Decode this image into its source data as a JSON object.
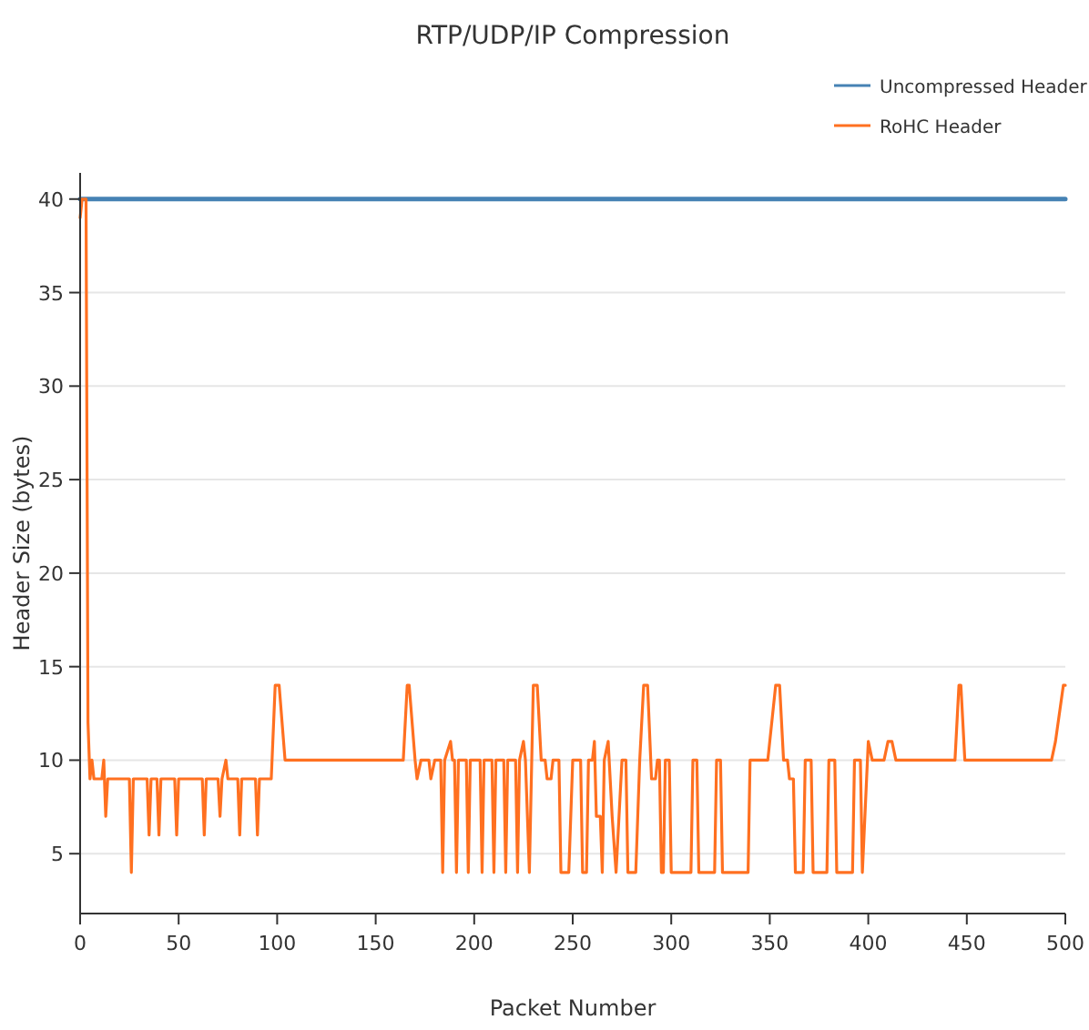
{
  "chart_data": {
    "type": "line",
    "title": "RTP/UDP/IP Compression",
    "xlabel": "Packet Number",
    "ylabel": "Header Size (bytes)",
    "xlim": [
      0,
      500
    ],
    "xticks": [
      0,
      50,
      100,
      150,
      200,
      250,
      300,
      350,
      400,
      450,
      500
    ],
    "ylim": [
      1.8,
      41.4
    ],
    "yticks": [
      5,
      10,
      15,
      20,
      25,
      30,
      35,
      40
    ],
    "grid": "y",
    "legend": "top right",
    "series": [
      {
        "name": "Uncompressed Header",
        "color": "#4682b4",
        "x": [
          0,
          500
        ],
        "values": [
          40,
          40
        ]
      },
      {
        "name": "RoHC Header",
        "color": "#ff7020",
        "x": [
          0,
          1,
          3,
          4,
          5,
          6,
          7,
          11,
          12,
          13,
          14,
          25,
          26,
          27,
          34,
          35,
          36,
          39,
          40,
          41,
          48,
          49,
          50,
          62,
          63,
          64,
          70,
          71,
          72,
          74,
          75,
          80,
          81,
          82,
          89,
          90,
          91,
          97,
          99,
          101,
          104,
          164,
          166,
          167,
          170,
          171,
          173,
          177,
          178,
          180,
          183,
          184,
          185,
          188,
          189,
          190,
          191,
          192,
          196,
          197,
          198,
          203,
          204,
          205,
          209,
          210,
          211,
          215,
          216,
          217,
          221,
          222,
          223,
          225,
          226,
          228,
          230,
          232,
          234,
          236,
          237,
          239,
          240,
          243,
          244,
          248,
          250,
          254,
          255,
          257,
          258,
          260,
          261,
          262,
          264,
          265,
          266,
          268,
          270,
          272,
          275,
          277,
          278,
          282,
          284,
          286,
          288,
          290,
          292,
          293,
          294,
          295,
          296,
          297,
          299,
          300,
          310,
          311,
          313,
          314,
          322,
          323,
          325,
          326,
          339,
          340,
          349,
          350,
          353,
          355,
          357,
          359,
          360,
          362,
          363,
          367,
          368,
          371,
          372,
          379,
          380,
          383,
          384,
          392,
          393,
          396,
          397,
          400,
          402,
          408,
          410,
          412,
          414,
          444,
          446,
          447,
          449,
          493,
          495,
          499,
          500
        ],
        "values": [
          39,
          40,
          40,
          12,
          9,
          10,
          9,
          9,
          10,
          7,
          9,
          9,
          4,
          9,
          9,
          6,
          9,
          9,
          6,
          9,
          9,
          6,
          9,
          9,
          6,
          9,
          9,
          7,
          9,
          10,
          9,
          9,
          6,
          9,
          9,
          6,
          9,
          9,
          14,
          14,
          10,
          10,
          14,
          14,
          10,
          9,
          10,
          10,
          9,
          10,
          10,
          4,
          10,
          11,
          10,
          10,
          4,
          10,
          10,
          4,
          10,
          10,
          4,
          10,
          10,
          4,
          10,
          10,
          4,
          10,
          10,
          4,
          10,
          11,
          10,
          4,
          14,
          14,
          10,
          10,
          9,
          9,
          10,
          10,
          4,
          4,
          10,
          10,
          4,
          4,
          10,
          10,
          11,
          7,
          7,
          4,
          10,
          11,
          7,
          4,
          10,
          10,
          4,
          4,
          10,
          14,
          14,
          9,
          9,
          10,
          10,
          4,
          4,
          10,
          10,
          4,
          4,
          10,
          10,
          4,
          4,
          10,
          10,
          4,
          4,
          10,
          10,
          11,
          14,
          14,
          10,
          10,
          9,
          9,
          4,
          4,
          10,
          10,
          4,
          4,
          10,
          10,
          4,
          4,
          10,
          10,
          4,
          11,
          10,
          10,
          11,
          11,
          10,
          10,
          14,
          14,
          10,
          10,
          11,
          14,
          14
        ]
      }
    ]
  }
}
